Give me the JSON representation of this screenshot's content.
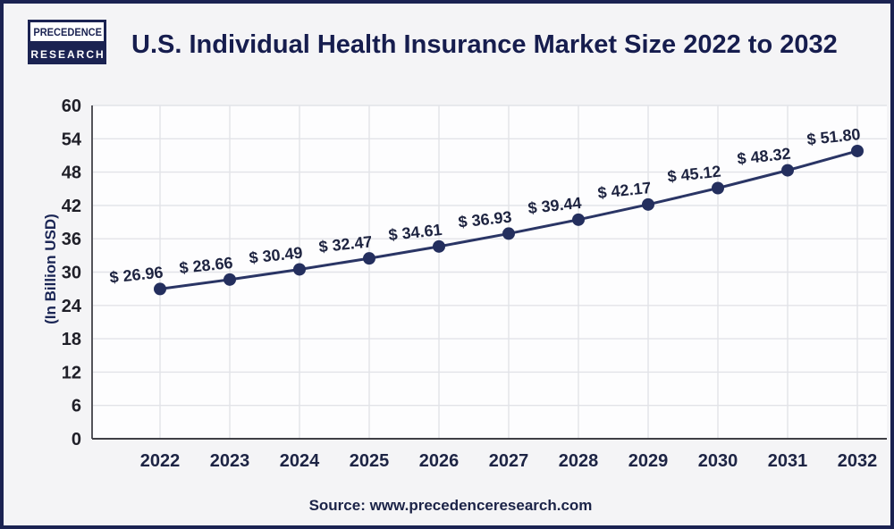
{
  "page": {
    "background": "#f4f4f6",
    "border_color": "#1b2352"
  },
  "logo": {
    "line1": "PRECEDENCE",
    "line2": "RESEARCH"
  },
  "header": {
    "title": "U.S. Individual Health Insurance Market Size 2022 to 2032"
  },
  "footer": {
    "source": "Source: www.precedenceresearch.com"
  },
  "chart_data": {
    "type": "line",
    "title": "U.S. Individual Health Insurance Market Size 2022 to 2032",
    "categories": [
      "2022",
      "2023",
      "2024",
      "2025",
      "2026",
      "2027",
      "2028",
      "2029",
      "2030",
      "2031",
      "2032"
    ],
    "values": [
      26.96,
      28.66,
      30.49,
      32.47,
      34.61,
      36.93,
      39.44,
      42.17,
      45.12,
      48.32,
      51.8
    ],
    "value_prefix": "$ ",
    "data_labels": [
      "$ 26.96",
      "$ 28.66",
      "$ 30.49",
      "$ 32.47",
      "$ 34.61",
      "$ 36.93",
      "$ 39.44",
      "$ 42.17",
      "$ 45.12",
      "$ 48.32",
      "$ 51.80"
    ],
    "xlabel": "",
    "ylabel": "(In Billion USD)",
    "ylim": [
      0,
      60
    ],
    "ytick_step": 6,
    "grid": true,
    "legend": "none",
    "colors": {
      "line": "#2a3565",
      "marker": "#242f5e",
      "data_label": "#1d2340",
      "ytick_label": "#1f1f28",
      "xtick_label": "#1d2444",
      "grid_line": "#e2e3e8",
      "y_axis_line": "#54545a",
      "x_axis_line": "#3f3f45",
      "plot_background": "#fdfdfe"
    }
  }
}
